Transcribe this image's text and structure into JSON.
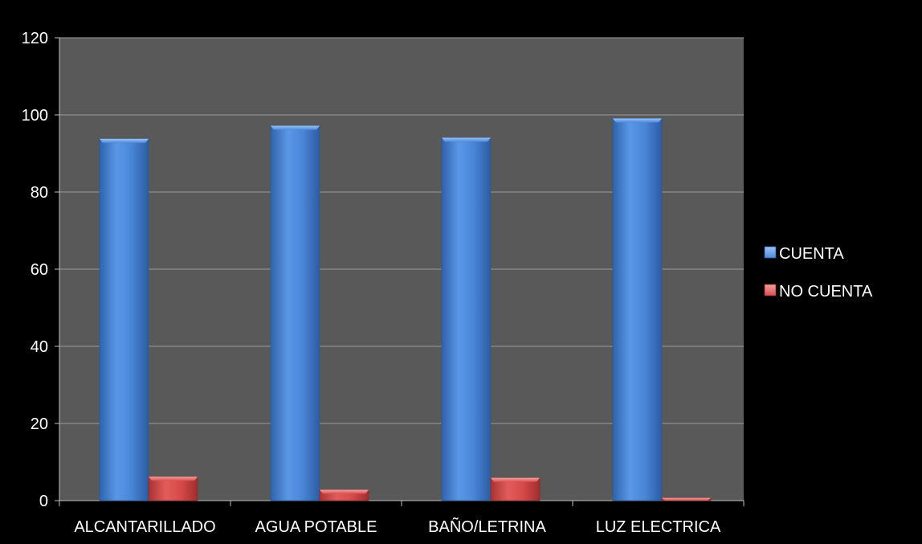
{
  "chart_data": {
    "type": "bar",
    "title": "",
    "xlabel": "",
    "ylabel": "",
    "categories": [
      "ALCANTARILLADO",
      "AGUA POTABLE",
      "BAÑO/LETRINA",
      "LUZ ELECTRICA"
    ],
    "series": [
      {
        "name": "CUENTA",
        "values": [
          93.8,
          97.2,
          94.1,
          99.1
        ],
        "color": "#4a86d8"
      },
      {
        "name": "NO CUENTA",
        "values": [
          6.2,
          2.8,
          5.9,
          0.7
        ],
        "color": "#d84a4a"
      }
    ],
    "ylim": [
      0,
      120
    ],
    "yticks": [
      0,
      20,
      40,
      60,
      80,
      100,
      120
    ],
    "grid": true,
    "legend_position": "right",
    "colors": {
      "background": "#000000",
      "plot_background": "#595959",
      "gridline": "#9a9a9a",
      "text": "#ffffff"
    }
  }
}
